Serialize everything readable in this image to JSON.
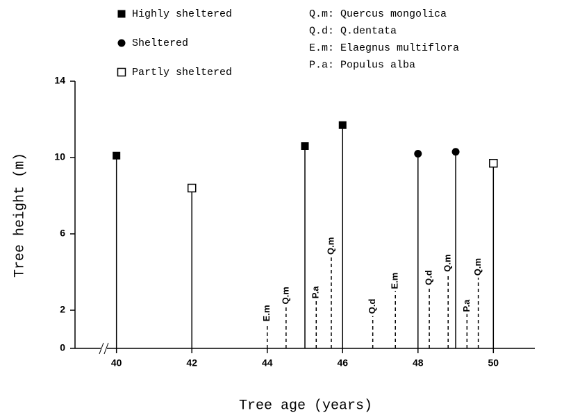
{
  "chart_data": {
    "type": "stem",
    "xlabel": "Tree age (years)",
    "ylabel": "Tree height (m)",
    "xlim": [
      38.9,
      51.1
    ],
    "xticks": [
      40,
      42,
      44,
      46,
      48,
      50
    ],
    "ylim": [
      0,
      14
    ],
    "yticks": [
      0,
      2,
      6,
      10,
      14
    ],
    "series": [
      {
        "name": "Highly sheltered",
        "marker": "filled-square",
        "color": "#000000",
        "x": [
          40,
          45,
          46
        ],
        "values": [
          10.1,
          10.6,
          11.7
        ]
      },
      {
        "name": "Sheltered",
        "marker": "filled-circle",
        "color": "#000000",
        "x": [
          48,
          49
        ],
        "values": [
          10.2,
          10.3
        ]
      },
      {
        "name": "Partly sheltered",
        "marker": "open-square",
        "color": "#000000",
        "x": [
          42,
          50
        ],
        "values": [
          8.4,
          9.7
        ]
      },
      {
        "marker": "none",
        "dashed": true,
        "color": "#000000",
        "x": [
          44,
          44.5,
          45.3,
          45.7,
          46.8,
          47.4,
          48.3,
          48.8,
          49.3,
          49.6
        ],
        "values": [
          1.3,
          2.2,
          2.5,
          4.8,
          1.7,
          3.0,
          3.2,
          3.9,
          1.8,
          3.7
        ],
        "labels": [
          "E.m",
          "Q.m",
          "P.a",
          "Q.m",
          "Q.d",
          "E.m",
          "Q.d",
          "Q.m",
          "P.a",
          "Q.m"
        ]
      }
    ],
    "key": [
      "Q.m: Quercus mongolica",
      "Q.d: Q.dentata",
      "E.m: Elaegnus multiflora",
      "P.a: Populus alba"
    ]
  }
}
